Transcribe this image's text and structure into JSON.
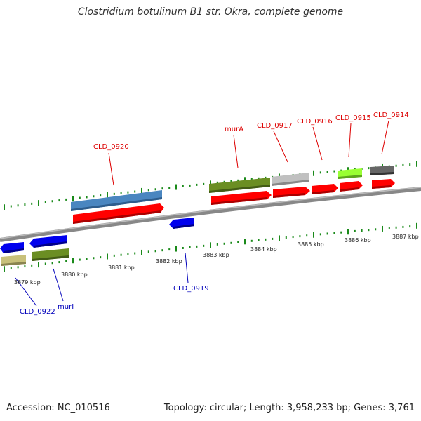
{
  "title": "Clostridium botulinum B1 str. Okra, complete genome",
  "footer": {
    "accession": "Accession: NC_010516",
    "summary": "Topology: circular; Length: 3,958,233 bp; Genes: 3,761"
  },
  "colors": {
    "backbone": "#888888",
    "tick": "#1a8a1a",
    "forward_label": "#dd0000",
    "reverse_label": "#0000bb",
    "cds": "#ff0000",
    "reverse_gene": "#0000ee",
    "steelblue": "#4a86c0",
    "olive": "#6b8e23",
    "gray": "#c0c0c0",
    "lime": "#99ff33",
    "dark": "#666666",
    "khaki": "#c8c07a"
  },
  "scale": {
    "ticks": [
      {
        "label": "3879 kbp"
      },
      {
        "label": "3880 kbp"
      },
      {
        "label": "3881 kbp"
      },
      {
        "label": "3882 kbp"
      },
      {
        "label": "3883 kbp"
      },
      {
        "label": "3884 kbp"
      },
      {
        "label": "3885 kbp"
      },
      {
        "label": "3886 kbp"
      },
      {
        "label": "3887 kbp"
      }
    ]
  },
  "genes": {
    "forward": [
      "CLD_0920",
      "murA",
      "CLD_0917",
      "CLD_0916",
      "CLD_0915",
      "CLD_0914"
    ],
    "reverse": [
      "CLD_0919",
      "CLD_0922",
      "murI"
    ]
  }
}
